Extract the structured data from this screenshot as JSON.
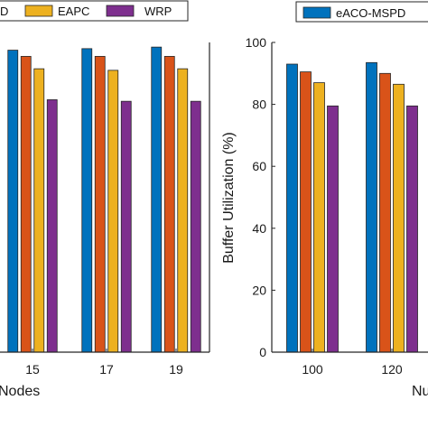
{
  "colors": {
    "series": [
      "#0072BD",
      "#D95319",
      "#EDB120",
      "#7E2F8E"
    ],
    "axis": "#262626",
    "background": "#ffffff"
  },
  "chart_data": [
    {
      "type": "bar",
      "categories": [
        "15",
        "17",
        "19"
      ],
      "xlabel": "Nodes",
      "ylabel": "",
      "ylim": [
        0,
        100
      ],
      "legend": {
        "visible_entries": [
          "D",
          "EAPC",
          "WRP"
        ],
        "placement": "top"
      },
      "series": [
        {
          "name": "",
          "values": [
            97.5,
            98,
            98.5
          ]
        },
        {
          "name": "",
          "values": [
            95.5,
            95.5,
            95.5
          ]
        },
        {
          "name": "EAPC",
          "values": [
            91.5,
            91,
            91.5
          ]
        },
        {
          "name": "WRP",
          "values": [
            81.5,
            81,
            81
          ]
        }
      ]
    },
    {
      "type": "bar",
      "categories": [
        "100",
        "120"
      ],
      "xlabel": "Nu",
      "ylabel": "Buffer Utilization (%)",
      "ylim": [
        0,
        100
      ],
      "yticks": [
        "0",
        "20",
        "40",
        "60",
        "80",
        "100"
      ],
      "legend": {
        "visible_entries": [
          "eACO-MSPD"
        ],
        "placement": "top"
      },
      "series": [
        {
          "name": "eACO-MSPD",
          "values": [
            93,
            93.5
          ]
        },
        {
          "name": "",
          "values": [
            90.5,
            90
          ]
        },
        {
          "name": "",
          "values": [
            87,
            86.5
          ]
        },
        {
          "name": "",
          "values": [
            79.5,
            79.5
          ]
        }
      ]
    }
  ]
}
